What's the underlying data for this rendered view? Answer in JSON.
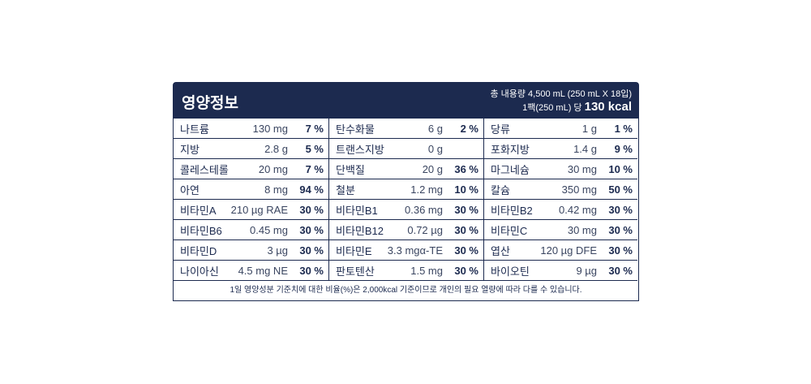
{
  "header": {
    "title": "영양정보",
    "total": "총 내용량 4,500 mL (250 mL X 18입)",
    "per_pack": "1팩(250 mL) 당",
    "kcal": "130 kcal"
  },
  "rows": [
    [
      {
        "n": "나트륨",
        "a": "130 mg",
        "p": "7 %"
      },
      {
        "n": "탄수화물",
        "a": "6 g",
        "p": "2 %"
      },
      {
        "n": "당류",
        "a": "1 g",
        "p": "1 %"
      }
    ],
    [
      {
        "n": "지방",
        "a": "2.8 g",
        "p": "5 %"
      },
      {
        "n": "트랜스지방",
        "a": "0 g",
        "p": ""
      },
      {
        "n": "포화지방",
        "a": "1.4 g",
        "p": "9 %"
      }
    ],
    [
      {
        "n": "콜레스테롤",
        "a": "20 mg",
        "p": "7 %"
      },
      {
        "n": "단백질",
        "a": "20 g",
        "p": "36 %"
      },
      {
        "n": "마그네슘",
        "a": "30 mg",
        "p": "10 %"
      }
    ],
    [
      {
        "n": "아연",
        "a": "8 mg",
        "p": "94 %"
      },
      {
        "n": "철분",
        "a": "1.2 mg",
        "p": "10 %"
      },
      {
        "n": "칼슘",
        "a": "350 mg",
        "p": "50 %"
      }
    ],
    [
      {
        "n": "비타민A",
        "a": "210 µg RAE",
        "p": "30 %"
      },
      {
        "n": "비타민B1",
        "a": "0.36 mg",
        "p": "30 %"
      },
      {
        "n": "비타민B2",
        "a": "0.42 mg",
        "p": "30 %"
      }
    ],
    [
      {
        "n": "비타민B6",
        "a": "0.45 mg",
        "p": "30 %"
      },
      {
        "n": "비타민B12",
        "a": "0.72 µg",
        "p": "30 %"
      },
      {
        "n": "비타민C",
        "a": "30 mg",
        "p": "30 %"
      }
    ],
    [
      {
        "n": "비타민D",
        "a": "3 µg",
        "p": "30 %"
      },
      {
        "n": "비타민E",
        "a": "3.3 mgα-TE",
        "p": "30 %"
      },
      {
        "n": "엽산",
        "a": "120 µg DFE",
        "p": "30 %"
      }
    ],
    [
      {
        "n": "나이아신",
        "a": "4.5 mg NE",
        "p": "30 %"
      },
      {
        "n": "판토텐산",
        "a": "1.5 mg",
        "p": "30 %"
      },
      {
        "n": "바이오틴",
        "a": "9 µg",
        "p": "30 %"
      }
    ]
  ],
  "footer": "1일 영양성분 기준치에 대한 비율(%)은 2,000kcal 기준이므로 개인의 필요 열량에 따라 다를 수 있습니다."
}
